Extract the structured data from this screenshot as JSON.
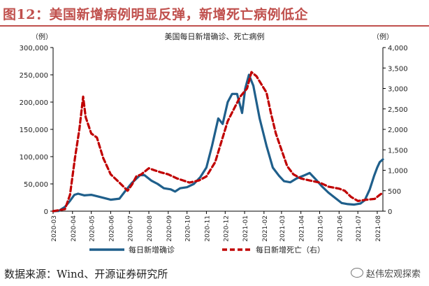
{
  "header": {
    "title": "图12：美国新增病例明显反弹，新增死亡病例低企"
  },
  "footer": {
    "source": "数据来源：Wind、开源证券研究所",
    "watermark": "赵伟宏观探索",
    "watermark_icon": "wechat-icon"
  },
  "colors": {
    "title": "#c0504d",
    "cases": "#1f5f8b",
    "deaths": "#c00000"
  },
  "chart_data": {
    "type": "line",
    "title": "美国每日新增确诊、死亡病例",
    "ylabel_left": "（例）",
    "ylabel_right": "（例）",
    "ylim_left": [
      0,
      300000
    ],
    "ylim_right": [
      0,
      4000
    ],
    "yticks_left": [
      "0",
      "50,000",
      "100,000",
      "150,000",
      "200,000",
      "250,000",
      "300,000"
    ],
    "yticks_right": [
      "0",
      "500",
      "1,000",
      "1,500",
      "2,000",
      "2,500",
      "3,000",
      "3,500",
      "4,000"
    ],
    "categories": [
      "2020-03",
      "2020-04",
      "2020-05",
      "2020-06",
      "2020-07",
      "2020-08",
      "2020-09",
      "2020-10",
      "2020-11",
      "2020-12",
      "2021-01",
      "2021-02",
      "2021-03",
      "2021-04",
      "2021-05",
      "2021-06",
      "2021-07",
      "2021-08"
    ],
    "x_range": [
      "2020-03-01",
      "2021-08-10"
    ],
    "grid": false,
    "legend": "bottom",
    "series": [
      {
        "name": "每日新增确诊",
        "axis": "left",
        "style": "solid",
        "points": [
          [
            "2020-03-01",
            0
          ],
          [
            "2020-03-10",
            500
          ],
          [
            "2020-03-20",
            8000
          ],
          [
            "2020-03-28",
            19000
          ],
          [
            "2020-04-04",
            30000
          ],
          [
            "2020-04-10",
            32000
          ],
          [
            "2020-04-20",
            29000
          ],
          [
            "2020-05-01",
            30000
          ],
          [
            "2020-05-15",
            26000
          ],
          [
            "2020-06-01",
            21000
          ],
          [
            "2020-06-15",
            23000
          ],
          [
            "2020-06-25",
            38000
          ],
          [
            "2020-07-05",
            52000
          ],
          [
            "2020-07-18",
            66000
          ],
          [
            "2020-07-25",
            66000
          ],
          [
            "2020-08-05",
            56000
          ],
          [
            "2020-08-15",
            50000
          ],
          [
            "2020-08-25",
            42000
          ],
          [
            "2020-09-05",
            40000
          ],
          [
            "2020-09-12",
            36000
          ],
          [
            "2020-09-20",
            42000
          ],
          [
            "2020-10-01",
            44000
          ],
          [
            "2020-10-12",
            50000
          ],
          [
            "2020-10-22",
            62000
          ],
          [
            "2020-11-01",
            80000
          ],
          [
            "2020-11-10",
            120000
          ],
          [
            "2020-11-20",
            170000
          ],
          [
            "2020-11-27",
            160000
          ],
          [
            "2020-12-05",
            200000
          ],
          [
            "2020-12-12",
            215000
          ],
          [
            "2020-12-20",
            215000
          ],
          [
            "2020-12-28",
            180000
          ],
          [
            "2021-01-02",
            225000
          ],
          [
            "2021-01-08",
            250000
          ],
          [
            "2021-01-15",
            230000
          ],
          [
            "2021-01-25",
            170000
          ],
          [
            "2021-02-05",
            120000
          ],
          [
            "2021-02-15",
            80000
          ],
          [
            "2021-02-25",
            65000
          ],
          [
            "2021-03-05",
            55000
          ],
          [
            "2021-03-15",
            53000
          ],
          [
            "2021-03-25",
            60000
          ],
          [
            "2021-04-05",
            65000
          ],
          [
            "2021-04-15",
            70000
          ],
          [
            "2021-04-25",
            58000
          ],
          [
            "2021-05-05",
            45000
          ],
          [
            "2021-05-15",
            34000
          ],
          [
            "2021-05-25",
            25000
          ],
          [
            "2021-06-05",
            15000
          ],
          [
            "2021-06-15",
            13000
          ],
          [
            "2021-06-25",
            12000
          ],
          [
            "2021-07-05",
            14000
          ],
          [
            "2021-07-12",
            20000
          ],
          [
            "2021-07-20",
            40000
          ],
          [
            "2021-07-27",
            65000
          ],
          [
            "2021-08-01",
            80000
          ],
          [
            "2021-08-05",
            90000
          ],
          [
            "2021-08-10",
            95000
          ]
        ]
      },
      {
        "name": "每日新增死亡（右）",
        "axis": "right",
        "style": "dashed",
        "points": [
          [
            "2020-03-01",
            0
          ],
          [
            "2020-03-20",
            50
          ],
          [
            "2020-03-28",
            400
          ],
          [
            "2020-04-05",
            1300
          ],
          [
            "2020-04-12",
            2000
          ],
          [
            "2020-04-18",
            2800
          ],
          [
            "2020-04-22",
            2300
          ],
          [
            "2020-05-01",
            1900
          ],
          [
            "2020-05-10",
            1800
          ],
          [
            "2020-05-20",
            1300
          ],
          [
            "2020-06-01",
            900
          ],
          [
            "2020-06-15",
            700
          ],
          [
            "2020-06-28",
            500
          ],
          [
            "2020-07-05",
            650
          ],
          [
            "2020-07-12",
            850
          ],
          [
            "2020-07-20",
            900
          ],
          [
            "2020-08-01",
            1050
          ],
          [
            "2020-08-10",
            1000
          ],
          [
            "2020-08-20",
            950
          ],
          [
            "2020-09-01",
            900
          ],
          [
            "2020-09-15",
            800
          ],
          [
            "2020-09-25",
            750
          ],
          [
            "2020-10-05",
            700
          ],
          [
            "2020-10-20",
            750
          ],
          [
            "2020-11-01",
            850
          ],
          [
            "2020-11-15",
            1200
          ],
          [
            "2020-11-25",
            1700
          ],
          [
            "2020-12-05",
            2200
          ],
          [
            "2020-12-15",
            2500
          ],
          [
            "2020-12-25",
            2800
          ],
          [
            "2021-01-05",
            3000
          ],
          [
            "2021-01-12",
            3400
          ],
          [
            "2021-01-20",
            3300
          ],
          [
            "2021-01-28",
            3100
          ],
          [
            "2021-02-05",
            2900
          ],
          [
            "2021-02-12",
            2400
          ],
          [
            "2021-02-20",
            1900
          ],
          [
            "2021-03-01",
            1500
          ],
          [
            "2021-03-10",
            1100
          ],
          [
            "2021-03-20",
            900
          ],
          [
            "2021-04-01",
            800
          ],
          [
            "2021-04-15",
            750
          ],
          [
            "2021-05-01",
            700
          ],
          [
            "2021-05-15",
            600
          ],
          [
            "2021-06-01",
            550
          ],
          [
            "2021-06-10",
            500
          ],
          [
            "2021-06-20",
            350
          ],
          [
            "2021-07-01",
            250
          ],
          [
            "2021-07-15",
            280
          ],
          [
            "2021-07-28",
            300
          ],
          [
            "2021-08-05",
            400
          ],
          [
            "2021-08-10",
            450
          ]
        ]
      }
    ]
  }
}
